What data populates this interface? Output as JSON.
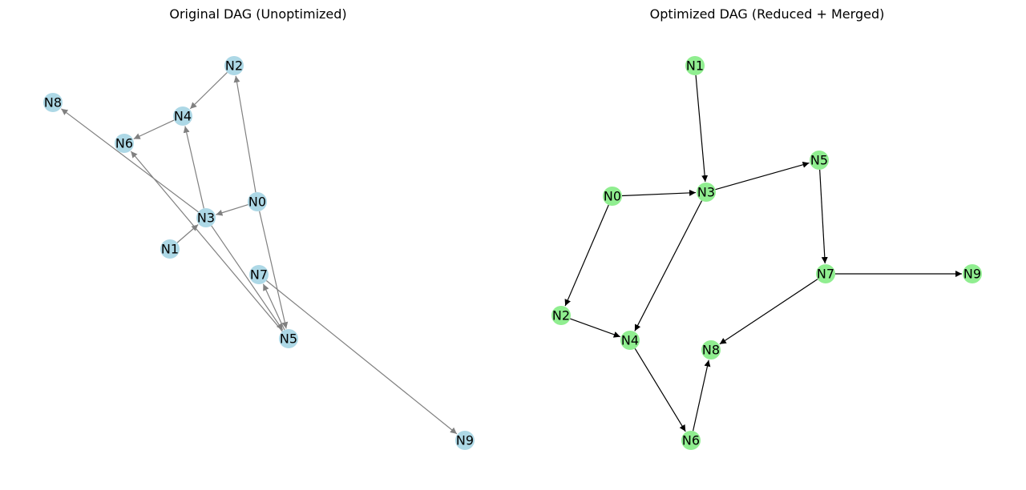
{
  "left": {
    "title": "Original DAG (Unoptimized)",
    "node_color": "#add8e6",
    "edge_color": "#808080",
    "nodes": [
      {
        "id": "N0"
      },
      {
        "id": "N1"
      },
      {
        "id": "N2"
      },
      {
        "id": "N3"
      },
      {
        "id": "N4"
      },
      {
        "id": "N5"
      },
      {
        "id": "N6"
      },
      {
        "id": "N7"
      },
      {
        "id": "N8"
      },
      {
        "id": "N9"
      }
    ],
    "edges": [
      [
        "N0",
        "N2"
      ],
      [
        "N0",
        "N3"
      ],
      [
        "N0",
        "N5"
      ],
      [
        "N1",
        "N3"
      ],
      [
        "N2",
        "N4"
      ],
      [
        "N3",
        "N4"
      ],
      [
        "N3",
        "N5"
      ],
      [
        "N3",
        "N8"
      ],
      [
        "N4",
        "N6"
      ],
      [
        "N5",
        "N6"
      ],
      [
        "N5",
        "N7"
      ],
      [
        "N7",
        "N9"
      ]
    ]
  },
  "right": {
    "title": "Optimized DAG (Reduced + Merged)",
    "node_color": "#90ee90",
    "edge_color": "#000000",
    "nodes": [
      {
        "id": "N0"
      },
      {
        "id": "N1"
      },
      {
        "id": "N2"
      },
      {
        "id": "N3"
      },
      {
        "id": "N4"
      },
      {
        "id": "N5"
      },
      {
        "id": "N6"
      },
      {
        "id": "N7"
      },
      {
        "id": "N8"
      },
      {
        "id": "N9"
      }
    ],
    "edges": [
      [
        "N1",
        "N3"
      ],
      [
        "N0",
        "N3"
      ],
      [
        "N0",
        "N2"
      ],
      [
        "N3",
        "N5"
      ],
      [
        "N3",
        "N4"
      ],
      [
        "N2",
        "N4"
      ],
      [
        "N5",
        "N7"
      ],
      [
        "N7",
        "N9"
      ],
      [
        "N7",
        "N8"
      ],
      [
        "N4",
        "N6"
      ],
      [
        "N6",
        "N8"
      ]
    ]
  }
}
